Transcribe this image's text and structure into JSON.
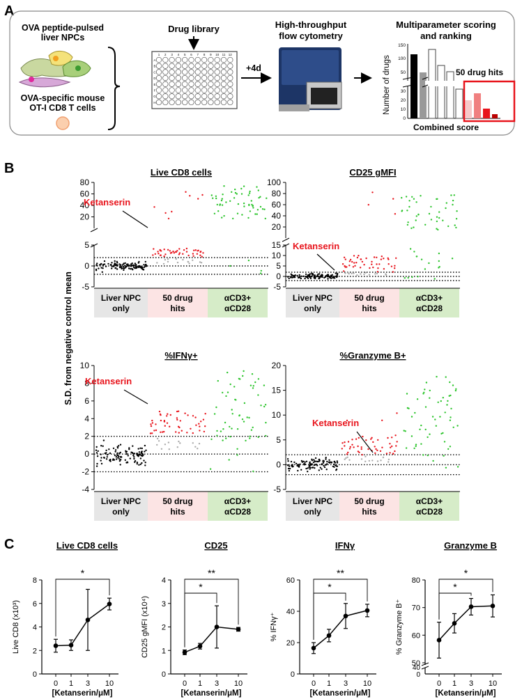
{
  "panelA": {
    "letter": "A",
    "ova_line1": "OVA peptide-pulsed",
    "ova_line2": "liver NPCs",
    "ot1_line1": "OVA-specific mouse",
    "ot1_line2": "OT-I CD8 T cells",
    "drug_library": "Drug library",
    "plate_cols": [
      "1",
      "2",
      "3",
      "4",
      "5",
      "6",
      "7",
      "8",
      "9",
      "10",
      "11",
      "12"
    ],
    "plate_rows": [
      "A",
      "B",
      "C",
      "D",
      "E",
      "F",
      "G",
      "H"
    ],
    "incubation": "+4d",
    "flow_line1": "High-throughput",
    "flow_line2": "flow cytometry",
    "score_line1": "Multiparameter scoring",
    "score_line2": "and ranking",
    "hits_label": "50 drug hits",
    "ylabel": "Number of drugs",
    "xlabel": "Combined score",
    "yticks_top": [
      "150",
      "100",
      "50"
    ],
    "yticks_bottom": [
      "30",
      "20",
      "10",
      "0"
    ]
  },
  "panelB": {
    "letter": "B",
    "ylabel": "S.D. from negative control mean",
    "groups": [
      "Liver NPC only",
      "50 drug hits",
      "αCD3+ αCD28"
    ],
    "colors": {
      "npc": "#000000",
      "hit": "#e8141c",
      "hit_below": "#aaaaaa",
      "pos": "#2bc42b",
      "npc_bg": "#e6e6e6",
      "hit_bg": "#fce4e4",
      "pos_bg": "#d6ecc8"
    },
    "callout": "Ketanserin",
    "plots": [
      {
        "title": "Live CD8 cells",
        "top_ticks": [
          "80",
          "60",
          "40",
          "20"
        ],
        "bottom_ticks": [
          "5",
          "0",
          "-5"
        ]
      },
      {
        "title": "CD25 gMFI",
        "top_ticks": [
          "100",
          "80",
          "60",
          "40",
          "20"
        ],
        "bottom_ticks": [
          "15",
          "10",
          "5",
          "0",
          "-5"
        ]
      },
      {
        "title": "%IFNγ+",
        "ticks": [
          "10",
          "8",
          "6",
          "4",
          "2",
          "0",
          "-2",
          "-4"
        ]
      },
      {
        "title": "%Granzyme B+",
        "ticks": [
          "20",
          "15",
          "10",
          "5",
          "0",
          "-5"
        ]
      }
    ]
  },
  "panelC": {
    "letter": "C",
    "xlabel": "[Ketanserin/μM]",
    "concentrations": [
      "0",
      "1",
      "3",
      "10"
    ],
    "chart_data": [
      {
        "type": "line",
        "title": "Live CD8 cells",
        "ylabel": "Live CD8 (x10³)",
        "x": [
          0,
          1,
          3,
          10
        ],
        "y": [
          2.4,
          2.45,
          4.6,
          5.95
        ],
        "err": [
          0.55,
          0.45,
          2.6,
          0.5
        ],
        "ylim": [
          0,
          8
        ],
        "yticks": [
          "0",
          "2",
          "4",
          "6",
          "8"
        ],
        "significance": [
          {
            "from": "0",
            "to": "10",
            "label": "*"
          }
        ]
      },
      {
        "type": "line",
        "title": "CD25",
        "ylabel": "CD25 gMFI (x10⁴)",
        "x": [
          0,
          1,
          3,
          10
        ],
        "y": [
          0.92,
          1.18,
          2.0,
          1.9
        ],
        "err": [
          0.1,
          0.12,
          0.9,
          0.08
        ],
        "ylim": [
          0,
          4
        ],
        "yticks": [
          "0",
          "1",
          "2",
          "3",
          "4"
        ],
        "significance": [
          {
            "from": "0",
            "to": "3",
            "label": "*"
          },
          {
            "from": "0",
            "to": "10",
            "label": "**"
          }
        ]
      },
      {
        "type": "line",
        "title": "IFNγ",
        "ylabel": "% IFNγ⁺",
        "x": [
          0,
          1,
          3,
          10
        ],
        "y": [
          16.5,
          24.5,
          37.0,
          40.5
        ],
        "err": [
          3.5,
          4.0,
          8.0,
          4.0
        ],
        "ylim": [
          0,
          60
        ],
        "yticks": [
          "0",
          "20",
          "40",
          "60"
        ],
        "significance": [
          {
            "from": "0",
            "to": "3",
            "label": "*"
          },
          {
            "from": "0",
            "to": "10",
            "label": "**"
          }
        ]
      },
      {
        "type": "line",
        "title": "Granzyme B",
        "ylabel": "% Granzyme B⁺",
        "x": [
          0,
          1,
          3,
          10
        ],
        "y": [
          58.2,
          64.3,
          70.3,
          70.6
        ],
        "err": [
          6.5,
          3.5,
          3.0,
          4.0
        ],
        "ylim": [
          50,
          80
        ],
        "yticks": [
          "50",
          "60",
          "70",
          "80"
        ],
        "yticks_break": [
          "0",
          "40"
        ],
        "significance": [
          {
            "from": "0",
            "to": "3",
            "label": "*"
          },
          {
            "from": "0",
            "to": "10",
            "label": "*"
          }
        ]
      }
    ]
  }
}
